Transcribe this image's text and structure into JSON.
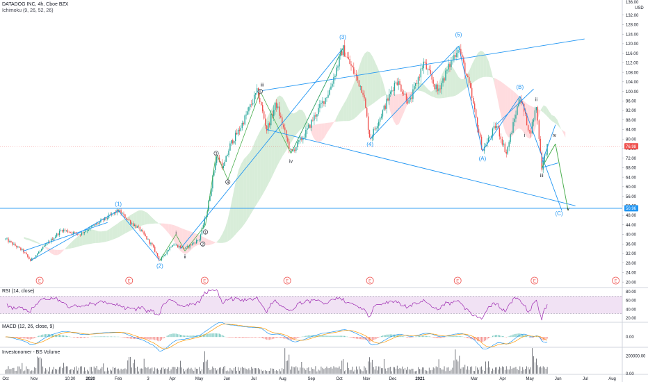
{
  "header": {
    "symbol_line": "DATADOG INC, 4h, Cboe BZX",
    "indicator_line": "Ichimoku (9, 26, 52, 26)"
  },
  "currency": "USD",
  "panes": {
    "rsi_title": "RSI (14, close)",
    "macd_title": "MACD (12, 26, close, 9)",
    "volume_title": "Investonomer - BS Volume"
  },
  "colors": {
    "up": "#26a69a",
    "down": "#ef5350",
    "wave": "#2196f3",
    "green_line": "#4caf50",
    "rsi": "#9c27b0",
    "rsi_band": "#e1bee7",
    "macd": "#2196f3",
    "signal": "#ff9800",
    "cloud_green": "#c8e6c9",
    "cloud_red": "#ffcdd2",
    "price_label_red": "#ef5350",
    "level_label_blue": "#2196f3",
    "earnings": "#ef5350"
  },
  "chart_data": {
    "type": "candlestick",
    "timeframe": "4h",
    "price_axis": {
      "ticks": [
        20,
        24,
        28,
        32,
        36,
        40,
        44,
        48,
        52,
        56,
        60,
        64,
        68,
        72,
        76,
        80,
        84,
        88,
        92,
        96,
        100,
        104,
        108,
        112,
        116,
        120,
        124,
        128,
        132
      ],
      "tick_labels": [
        "20.00",
        "24.00",
        "28.00",
        "32.00",
        "36.00",
        "40.00",
        "44.00",
        "48.00",
        "52.00",
        "56.00",
        "60.00",
        "64.00",
        "68.00",
        "72.00",
        "76.00",
        "80.00",
        "84.00",
        "88.00",
        "92.00",
        "96.00",
        "100.00",
        "104.00",
        "108.00",
        "112.00",
        "116.00",
        "120.00",
        "124.00",
        "128.00",
        "132.00"
      ],
      "range": [
        18,
        136
      ]
    },
    "time_axis": {
      "labels": [
        "Oct",
        "Nov",
        "10:30",
        "2020",
        "Feb",
        "3",
        "Apr",
        "May",
        "Jun",
        "Jul",
        "Aug",
        "Sep",
        "Oct",
        "Nov",
        "Dec",
        "2021",
        "Mar",
        "Apr",
        "May",
        "Jun",
        "Jul",
        "Aug"
      ],
      "bold": [
        "2020",
        "2021"
      ]
    },
    "current_price": {
      "value": 76.98,
      "label": "76.98"
    },
    "horizontal_level": {
      "value": 50.96,
      "label": "50.96"
    },
    "top_partial_label": "136.00",
    "price_path": [
      [
        "2019-10-01",
        38
      ],
      [
        "2019-10-20",
        33
      ],
      [
        "2019-10-28",
        29
      ],
      [
        "2019-11-15",
        36
      ],
      [
        "2019-12-01",
        42
      ],
      [
        "2019-12-20",
        40
      ],
      [
        "2020-01-15",
        46
      ],
      [
        "2020-02-01",
        50
      ],
      [
        "2020-02-15",
        45
      ],
      [
        "2020-02-25",
        42
      ],
      [
        "2020-03-10",
        35
      ],
      [
        "2020-03-18",
        29
      ],
      [
        "2020-04-01",
        36
      ],
      [
        "2020-04-15",
        34
      ],
      [
        "2020-05-01",
        38
      ],
      [
        "2020-05-10",
        50
      ],
      [
        "2020-05-20",
        73
      ],
      [
        "2020-05-28",
        68
      ],
      [
        "2020-06-05",
        78
      ],
      [
        "2020-06-15",
        84
      ],
      [
        "2020-06-25",
        92
      ],
      [
        "2020-07-05",
        100
      ],
      [
        "2020-07-15",
        84
      ],
      [
        "2020-07-25",
        95
      ],
      [
        "2020-08-10",
        74
      ],
      [
        "2020-08-25",
        82
      ],
      [
        "2020-09-05",
        90
      ],
      [
        "2020-09-20",
        100
      ],
      [
        "2020-10-05",
        118
      ],
      [
        "2020-10-15",
        110
      ],
      [
        "2020-10-28",
        100
      ],
      [
        "2020-11-05",
        80
      ],
      [
        "2020-11-20",
        92
      ],
      [
        "2020-12-05",
        105
      ],
      [
        "2020-12-20",
        95
      ],
      [
        "2021-01-05",
        112
      ],
      [
        "2021-01-20",
        100
      ],
      [
        "2021-02-01",
        110
      ],
      [
        "2021-02-12",
        119
      ],
      [
        "2021-02-25",
        100
      ],
      [
        "2021-03-10",
        75
      ],
      [
        "2021-03-25",
        86
      ],
      [
        "2021-04-05",
        74
      ],
      [
        "2021-04-20",
        98
      ],
      [
        "2021-05-01",
        82
      ],
      [
        "2021-05-08",
        94
      ],
      [
        "2021-05-14",
        68
      ],
      [
        "2021-05-20",
        76.98
      ]
    ],
    "wave_labels": [
      {
        "label": "(1)",
        "date": "2020-02-01",
        "price": 52,
        "color": "wave"
      },
      {
        "label": "(2)",
        "date": "2020-03-18",
        "price": 26,
        "color": "wave"
      },
      {
        "label": "(3)",
        "date": "2020-10-05",
        "price": 122,
        "color": "wave"
      },
      {
        "label": "(4)",
        "date": "2020-11-05",
        "price": 77,
        "color": "wave"
      },
      {
        "label": "(5)",
        "date": "2021-02-12",
        "price": 123,
        "color": "wave"
      },
      {
        "label": "(A)",
        "date": "2021-03-10",
        "price": 71,
        "color": "wave"
      },
      {
        "label": "(B)",
        "date": "2021-04-20",
        "price": 101,
        "color": "wave"
      },
      {
        "label": "(C)",
        "date": "2021-06-02",
        "price": 48,
        "color": "wave"
      },
      {
        "label": "i",
        "date": "2020-04-05",
        "price": 40,
        "color": "dark"
      },
      {
        "label": "ii",
        "date": "2020-04-15",
        "price": 30,
        "color": "dark"
      },
      {
        "label": "iii",
        "date": "2020-07-10",
        "price": 102,
        "color": "dark"
      },
      {
        "label": "iv",
        "date": "2020-08-10",
        "price": 70,
        "color": "dark"
      },
      {
        "label": "i",
        "date": "2021-04-25",
        "price": 81,
        "color": "dark"
      },
      {
        "label": "ii",
        "date": "2021-05-08",
        "price": 96,
        "color": "dark"
      },
      {
        "label": "iii",
        "date": "2021-05-14",
        "price": 64,
        "color": "dark"
      },
      {
        "label": "iv",
        "date": "2021-05-28",
        "price": 81,
        "color": "dark"
      },
      {
        "label": "v",
        "date": "2021-06-12",
        "price": 50,
        "color": "dark"
      }
    ],
    "circled_labels": [
      {
        "label": "1",
        "date": "2020-05-08",
        "price": 41
      },
      {
        "label": "2",
        "date": "2020-05-05",
        "price": 36
      },
      {
        "label": "3",
        "date": "2020-05-20",
        "price": 74
      },
      {
        "label": "4",
        "date": "2020-06-02",
        "price": 62
      },
      {
        "label": "5",
        "date": "2020-07-08",
        "price": 100
      }
    ],
    "earnings_dates": [
      "2019-11-07",
      "2020-02-13",
      "2020-05-07",
      "2020-08-06",
      "2020-11-05",
      "2021-02-11",
      "2021-05-06",
      "2021-08-05"
    ],
    "earnings_marker": "E",
    "rsi": {
      "ticks": [
        20,
        40,
        60,
        80
      ],
      "tick_labels": [
        "20.00",
        "40.00",
        "60.00",
        "80.00"
      ],
      "band": [
        30,
        70
      ],
      "range": [
        12,
        88
      ]
    },
    "macd": {
      "ticks": [
        0
      ],
      "tick_labels": [
        "0.00"
      ]
    },
    "volume": {
      "ticks": [
        0,
        200000
      ],
      "tick_labels": [
        "0.00",
        "200000.00"
      ],
      "range": [
        0,
        260000
      ]
    }
  }
}
